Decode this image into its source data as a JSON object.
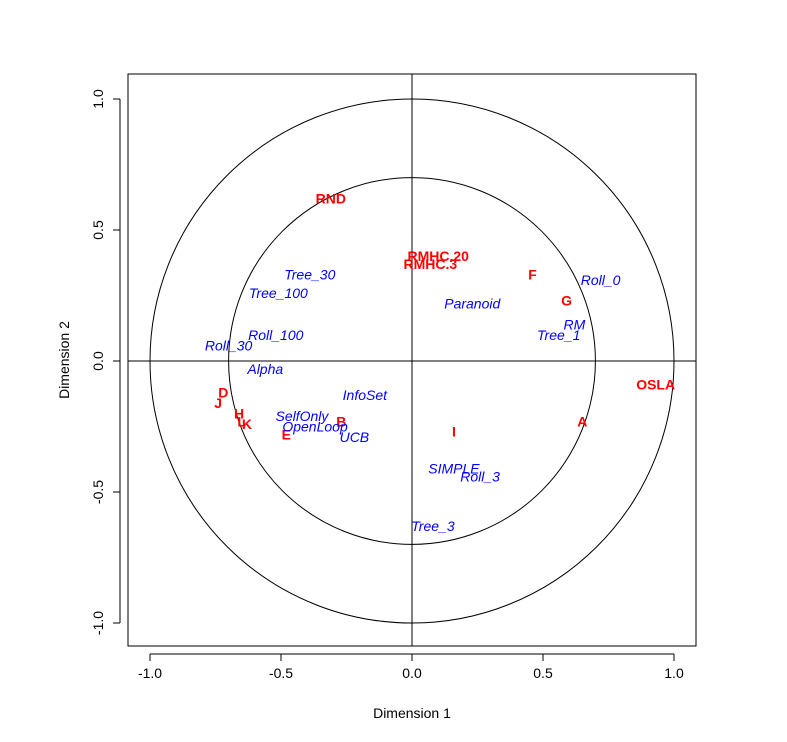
{
  "chart_data": {
    "type": "scatter",
    "title": "",
    "xlabel": "Dimension 1",
    "ylabel": "Dimension 2",
    "xlim": [
      -1.0,
      1.0
    ],
    "ylim": [
      -1.0,
      1.0
    ],
    "x_ticks": [
      -1.0,
      -0.5,
      0.0,
      0.5,
      1.0
    ],
    "y_ticks": [
      -1.0,
      -0.5,
      0.0,
      0.5,
      1.0
    ],
    "x_tick_labels": [
      "-1.0",
      "-0.5",
      "0.0",
      "0.5",
      "1.0"
    ],
    "y_tick_labels": [
      "-1.0",
      "-0.5",
      "0.0",
      "0.5",
      "1.0"
    ],
    "circles": [
      1.0,
      0.7
    ],
    "reference_lines": {
      "horizontal": 0.0,
      "vertical": 0.0
    },
    "grid": false,
    "legend": "none",
    "series": [
      {
        "color": "#ff0000",
        "style": "bold",
        "points": [
          {
            "label": "RND",
            "x": -0.31,
            "y": 0.62
          },
          {
            "label": "RMHC.20",
            "x": 0.1,
            "y": 0.4
          },
          {
            "label": "RMHC.3",
            "x": 0.07,
            "y": 0.37
          },
          {
            "label": "F",
            "x": 0.46,
            "y": 0.33
          },
          {
            "label": "G",
            "x": 0.59,
            "y": 0.23
          },
          {
            "label": "OSLA",
            "x": 0.93,
            "y": -0.09
          },
          {
            "label": "A",
            "x": 0.65,
            "y": -0.23
          },
          {
            "label": "I",
            "x": 0.16,
            "y": -0.27
          },
          {
            "label": "B",
            "x": -0.27,
            "y": -0.23
          },
          {
            "label": "E",
            "x": -0.48,
            "y": -0.28
          },
          {
            "label": "D",
            "x": -0.72,
            "y": -0.12
          },
          {
            "label": "J",
            "x": -0.74,
            "y": -0.16
          },
          {
            "label": "H",
            "x": -0.66,
            "y": -0.2
          },
          {
            "label": "K",
            "x": -0.63,
            "y": -0.24
          },
          {
            "label": "L",
            "x": -0.65,
            "y": -0.23
          }
        ]
      },
      {
        "color": "#0000ff",
        "style": "italic",
        "points": [
          {
            "label": "Tree_30",
            "x": -0.39,
            "y": 0.33
          },
          {
            "label": "Tree_100",
            "x": -0.51,
            "y": 0.26
          },
          {
            "label": "Roll_100",
            "x": -0.52,
            "y": 0.1
          },
          {
            "label": "Roll_30",
            "x": -0.7,
            "y": 0.06
          },
          {
            "label": "Alpha",
            "x": -0.56,
            "y": -0.03
          },
          {
            "label": "InfoSet",
            "x": -0.18,
            "y": -0.13
          },
          {
            "label": "SelfOnly",
            "x": -0.42,
            "y": -0.21
          },
          {
            "label": "OpenLoop",
            "x": -0.37,
            "y": -0.25
          },
          {
            "label": "UCB",
            "x": -0.22,
            "y": -0.29
          },
          {
            "label": "Paranoid",
            "x": 0.23,
            "y": 0.22
          },
          {
            "label": "Roll_0",
            "x": 0.72,
            "y": 0.31
          },
          {
            "label": "RM",
            "x": 0.62,
            "y": 0.14
          },
          {
            "label": "Tree_1",
            "x": 0.56,
            "y": 0.1
          },
          {
            "label": "SIMPLE",
            "x": 0.16,
            "y": -0.41
          },
          {
            "label": "Roll_3",
            "x": 0.26,
            "y": -0.44
          },
          {
            "label": "Tree_3",
            "x": 0.08,
            "y": -0.63
          }
        ]
      }
    ]
  }
}
